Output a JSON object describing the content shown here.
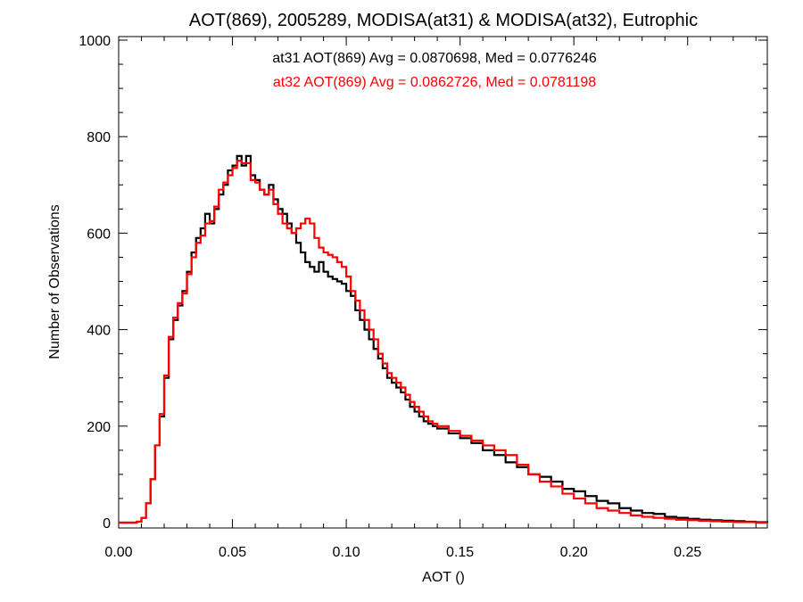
{
  "chart_data": {
    "type": "line",
    "title": "AOT(869), 2005289, MODISA(at31) & MODISA(at32), Eutrophic",
    "xlabel": "AOT ()",
    "ylabel": "Number of Observations",
    "xlim": [
      0.0,
      0.285
    ],
    "ylim": [
      0,
      1000
    ],
    "x_ticks": [
      "0.00",
      "0.05",
      "0.10",
      "0.15",
      "0.20",
      "0.25"
    ],
    "x_tick_values": [
      0.0,
      0.05,
      0.1,
      0.15,
      0.2,
      0.25
    ],
    "y_ticks": [
      "0",
      "200",
      "400",
      "600",
      "800",
      "1000"
    ],
    "y_tick_values": [
      0,
      200,
      400,
      600,
      800,
      1000
    ],
    "annotations": [
      {
        "text": "at31 AOT(869) Avg = 0.0870698, Med = 0.0776246",
        "color": "#000000"
      },
      {
        "text": "at32 AOT(869) Avg = 0.0862726, Med = 0.0781198",
        "color": "#ff0000"
      }
    ],
    "x": [
      0.0,
      0.005,
      0.008,
      0.01,
      0.012,
      0.014,
      0.016,
      0.018,
      0.02,
      0.022,
      0.024,
      0.026,
      0.028,
      0.03,
      0.032,
      0.034,
      0.036,
      0.038,
      0.04,
      0.042,
      0.044,
      0.046,
      0.048,
      0.05,
      0.052,
      0.054,
      0.056,
      0.058,
      0.06,
      0.062,
      0.064,
      0.066,
      0.068,
      0.07,
      0.072,
      0.074,
      0.076,
      0.078,
      0.08,
      0.082,
      0.084,
      0.086,
      0.088,
      0.09,
      0.092,
      0.094,
      0.096,
      0.098,
      0.1,
      0.102,
      0.104,
      0.106,
      0.108,
      0.11,
      0.112,
      0.114,
      0.116,
      0.118,
      0.12,
      0.122,
      0.124,
      0.126,
      0.128,
      0.13,
      0.132,
      0.134,
      0.136,
      0.138,
      0.14,
      0.145,
      0.15,
      0.155,
      0.16,
      0.165,
      0.17,
      0.175,
      0.18,
      0.185,
      0.19,
      0.195,
      0.2,
      0.205,
      0.21,
      0.215,
      0.22,
      0.225,
      0.23,
      0.235,
      0.24,
      0.245,
      0.25,
      0.255,
      0.26,
      0.265,
      0.27,
      0.275,
      0.28,
      0.285
    ],
    "series": [
      {
        "name": "at31",
        "color": "#000000",
        "values": [
          0,
          0,
          2,
          10,
          40,
          90,
          160,
          220,
          300,
          380,
          420,
          450,
          480,
          520,
          560,
          590,
          610,
          640,
          620,
          650,
          680,
          700,
          730,
          740,
          760,
          740,
          760,
          720,
          710,
          690,
          680,
          700,
          670,
          650,
          640,
          620,
          600,
          580,
          560,
          540,
          530,
          520,
          540,
          520,
          510,
          505,
          500,
          495,
          480,
          470,
          440,
          420,
          400,
          380,
          360,
          340,
          320,
          300,
          290,
          280,
          270,
          255,
          240,
          230,
          220,
          210,
          205,
          200,
          195,
          185,
          175,
          165,
          150,
          140,
          125,
          115,
          100,
          95,
          85,
          70,
          65,
          55,
          45,
          40,
          30,
          25,
          20,
          18,
          12,
          10,
          8,
          6,
          5,
          4,
          3,
          2,
          1,
          0
        ]
      },
      {
        "name": "at32",
        "color": "#ff0000",
        "values": [
          0,
          0,
          2,
          10,
          40,
          90,
          160,
          225,
          305,
          385,
          425,
          455,
          475,
          515,
          550,
          580,
          595,
          620,
          625,
          655,
          690,
          705,
          720,
          735,
          750,
          745,
          745,
          710,
          705,
          690,
          680,
          690,
          660,
          640,
          620,
          610,
          600,
          610,
          620,
          630,
          620,
          590,
          570,
          560,
          555,
          550,
          540,
          530,
          510,
          480,
          460,
          440,
          420,
          400,
          380,
          350,
          330,
          310,
          300,
          290,
          280,
          265,
          250,
          240,
          230,
          220,
          210,
          205,
          200,
          190,
          180,
          170,
          160,
          150,
          140,
          120,
          100,
          85,
          75,
          60,
          50,
          40,
          30,
          25,
          20,
          15,
          12,
          10,
          8,
          6,
          5,
          4,
          3,
          2,
          1,
          1,
          0,
          0
        ]
      }
    ]
  }
}
